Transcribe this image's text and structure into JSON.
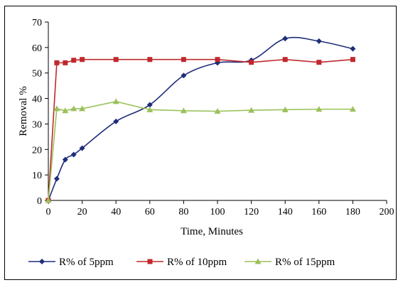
{
  "chart_data": {
    "type": "line",
    "xlabel": "Time, Minutes",
    "ylabel": "Removal %",
    "xlim": [
      0,
      200
    ],
    "ylim": [
      0,
      70
    ],
    "xticks": [
      "0",
      "20",
      "40",
      "60",
      "80",
      "100",
      "120",
      "140",
      "160",
      "180",
      "200"
    ],
    "yticks": [
      "0",
      "10",
      "20",
      "30",
      "40",
      "50",
      "60",
      "70"
    ],
    "grid": false,
    "legend_position": "bottom",
    "series": [
      {
        "name": "R% of 5ppm",
        "color": "#1f2d7a",
        "marker": "diamond",
        "smooth": true,
        "x": [
          0,
          5,
          10,
          15,
          20,
          40,
          60,
          80,
          100,
          120,
          140,
          160,
          180
        ],
        "y": [
          0,
          8.5,
          16,
          18,
          20.5,
          31,
          37.5,
          49,
          54,
          55,
          63.5,
          62.5,
          59.5
        ]
      },
      {
        "name": "R% of 10ppm",
        "color": "#c0282d",
        "marker": "square",
        "smooth": false,
        "x": [
          0,
          5,
          10,
          15,
          20,
          40,
          60,
          80,
          100,
          120,
          140,
          160,
          180
        ],
        "y": [
          0,
          54,
          54,
          55,
          55.3,
          55.3,
          55.3,
          55.3,
          55.3,
          54.2,
          55.3,
          54.2,
          55.3
        ]
      },
      {
        "name": "R% of 15ppm",
        "color": "#9bc15a",
        "marker": "triangle",
        "smooth": false,
        "x": [
          0,
          5,
          10,
          15,
          20,
          40,
          60,
          80,
          100,
          120,
          140,
          160,
          180
        ],
        "y": [
          0,
          36,
          35.2,
          36,
          36,
          38.8,
          35.6,
          35.2,
          35,
          35.4,
          35.6,
          35.8,
          35.8
        ]
      }
    ]
  }
}
